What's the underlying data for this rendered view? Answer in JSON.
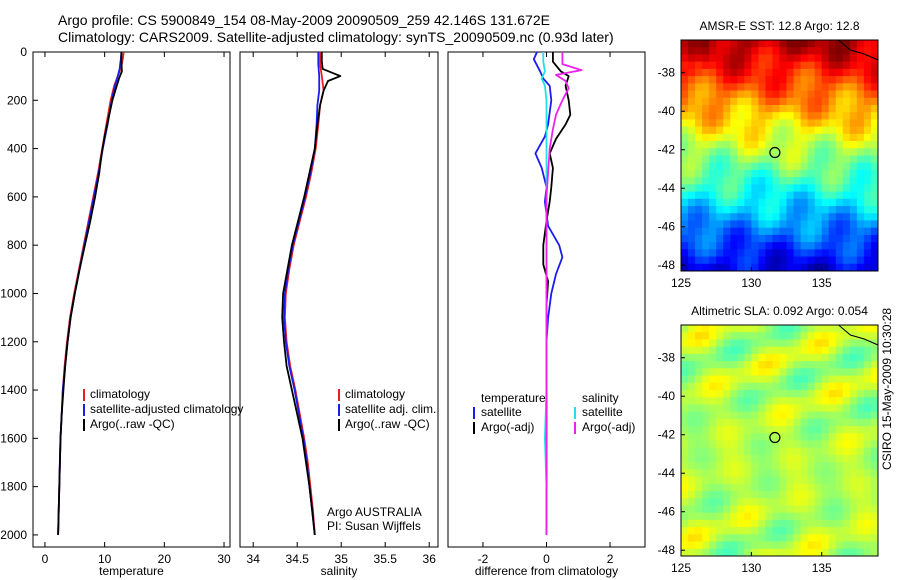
{
  "header": {
    "line1": "Argo profile: CS 5900849_154 08-May-2009 20090509_259 42.146S 131.672E",
    "line2": "Climatology: CARS2009. Satellite-adjusted climatology: synTS_20090509.nc (0.93d later)"
  },
  "side_stamp": "CSIRO 15-May-2009 10:30:28",
  "colors": {
    "red": "#ee1c1c",
    "blue": "#1c1cee",
    "black": "#000000",
    "cyan": "#22e0e8",
    "magenta": "#ee22ee"
  },
  "chart_data": [
    {
      "type": "line",
      "id": "temperature",
      "xlabel": "temperature",
      "xlim": [
        -2,
        31
      ],
      "ylim": [
        2050,
        0
      ],
      "xticks": [
        0,
        10,
        20,
        30
      ],
      "yticks": [
        0,
        200,
        400,
        600,
        800,
        1000,
        1200,
        1400,
        1600,
        1800,
        2000
      ],
      "legend": [
        "climatology",
        "satellite-adjusted climatology",
        "Argo(..raw -QC)"
      ],
      "series": [
        {
          "name": "climatology",
          "color": "red",
          "points": [
            [
              13.2,
              0
            ],
            [
              13.1,
              20
            ],
            [
              12.8,
              60
            ],
            [
              12.2,
              100
            ],
            [
              11.6,
              140
            ],
            [
              11.0,
              200
            ],
            [
              10.3,
              300
            ],
            [
              9.6,
              400
            ],
            [
              8.9,
              500
            ],
            [
              8.1,
              600
            ],
            [
              7.3,
              700
            ],
            [
              6.5,
              800
            ],
            [
              5.7,
              900
            ],
            [
              4.9,
              1000
            ],
            [
              4.2,
              1100
            ],
            [
              3.7,
              1200
            ],
            [
              3.3,
              1300
            ],
            [
              3.0,
              1400
            ],
            [
              2.8,
              1500
            ],
            [
              2.6,
              1600
            ],
            [
              2.5,
              1700
            ],
            [
              2.4,
              1800
            ],
            [
              2.3,
              1900
            ],
            [
              2.2,
              2000
            ]
          ]
        },
        {
          "name": "satellite-adjusted climatology",
          "color": "blue",
          "points": [
            [
              12.8,
              0
            ],
            [
              12.7,
              30
            ],
            [
              12.5,
              70
            ],
            [
              12.2,
              100
            ],
            [
              11.7,
              140
            ],
            [
              11.2,
              200
            ],
            [
              10.5,
              300
            ],
            [
              9.7,
              400
            ],
            [
              9.0,
              500
            ],
            [
              8.2,
              600
            ],
            [
              7.4,
              700
            ],
            [
              6.6,
              800
            ],
            [
              5.8,
              900
            ],
            [
              5.0,
              1000
            ],
            [
              4.3,
              1100
            ],
            [
              3.8,
              1200
            ],
            [
              3.4,
              1300
            ],
            [
              3.0,
              1400
            ],
            [
              2.8,
              1500
            ],
            [
              2.6,
              1600
            ],
            [
              2.5,
              1700
            ],
            [
              2.4,
              1800
            ],
            [
              2.3,
              1900
            ],
            [
              2.2,
              2000
            ]
          ]
        },
        {
          "name": "Argo(..raw -QC)",
          "color": "black",
          "points": [
            [
              12.8,
              0
            ],
            [
              12.8,
              40
            ],
            [
              12.9,
              80
            ],
            [
              12.4,
              110
            ],
            [
              11.9,
              150
            ],
            [
              11.3,
              200
            ],
            [
              10.6,
              280
            ],
            [
              10.0,
              350
            ],
            [
              9.5,
              420
            ],
            [
              9.1,
              500
            ],
            [
              8.4,
              600
            ],
            [
              7.6,
              700
            ],
            [
              6.7,
              800
            ],
            [
              5.8,
              900
            ],
            [
              5.0,
              1000
            ],
            [
              4.3,
              1100
            ],
            [
              3.8,
              1200
            ],
            [
              3.4,
              1300
            ],
            [
              3.1,
              1400
            ],
            [
              2.8,
              1500
            ],
            [
              2.6,
              1600
            ],
            [
              2.5,
              1700
            ],
            [
              2.4,
              1800
            ],
            [
              2.3,
              1900
            ],
            [
              2.2,
              2000
            ]
          ]
        }
      ]
    },
    {
      "type": "line",
      "id": "salinity",
      "xlabel": "salinity",
      "xlim": [
        33.85,
        36.1
      ],
      "ylim": [
        2050,
        0
      ],
      "xticks": [
        34,
        34.5,
        35,
        35.5,
        36
      ],
      "yticks": [],
      "legend": [
        "climatology",
        "satellite adj. clim.",
        "Argo(..raw -QC)"
      ],
      "annotation": [
        "Argo AUSTRALIA",
        "PI: Susan Wijffels"
      ],
      "series": [
        {
          "name": "climatology",
          "color": "red",
          "points": [
            [
              34.76,
              0
            ],
            [
              34.76,
              50
            ],
            [
              34.78,
              100
            ],
            [
              34.8,
              160
            ],
            [
              34.76,
              220
            ],
            [
              34.74,
              300
            ],
            [
              34.71,
              400
            ],
            [
              34.66,
              500
            ],
            [
              34.6,
              600
            ],
            [
              34.53,
              700
            ],
            [
              34.46,
              800
            ],
            [
              34.41,
              900
            ],
            [
              34.37,
              1000
            ],
            [
              34.36,
              1100
            ],
            [
              34.38,
              1200
            ],
            [
              34.42,
              1300
            ],
            [
              34.48,
              1400
            ],
            [
              34.53,
              1500
            ],
            [
              34.58,
              1600
            ],
            [
              34.62,
              1700
            ],
            [
              34.65,
              1800
            ],
            [
              34.68,
              1900
            ],
            [
              34.7,
              2000
            ]
          ]
        },
        {
          "name": "satellite adj. clim.",
          "color": "blue",
          "points": [
            [
              34.74,
              0
            ],
            [
              34.74,
              50
            ],
            [
              34.75,
              100
            ],
            [
              34.75,
              160
            ],
            [
              34.73,
              220
            ],
            [
              34.72,
              300
            ],
            [
              34.7,
              400
            ],
            [
              34.65,
              500
            ],
            [
              34.59,
              600
            ],
            [
              34.52,
              700
            ],
            [
              34.45,
              800
            ],
            [
              34.4,
              900
            ],
            [
              34.36,
              1000
            ],
            [
              34.35,
              1100
            ],
            [
              34.37,
              1200
            ],
            [
              34.41,
              1300
            ],
            [
              34.47,
              1400
            ],
            [
              34.52,
              1500
            ],
            [
              34.57,
              1600
            ],
            [
              34.61,
              1700
            ],
            [
              34.64,
              1800
            ],
            [
              34.67,
              1900
            ],
            [
              34.7,
              2000
            ]
          ]
        },
        {
          "name": "Argo(..raw -QC)",
          "color": "black",
          "points": [
            [
              34.78,
              0
            ],
            [
              34.78,
              40
            ],
            [
              34.79,
              70
            ],
            [
              34.99,
              100
            ],
            [
              34.85,
              120
            ],
            [
              34.8,
              160
            ],
            [
              34.76,
              220
            ],
            [
              34.73,
              300
            ],
            [
              34.7,
              400
            ],
            [
              34.64,
              500
            ],
            [
              34.58,
              600
            ],
            [
              34.51,
              700
            ],
            [
              34.44,
              800
            ],
            [
              34.39,
              900
            ],
            [
              34.34,
              1000
            ],
            [
              34.33,
              1100
            ],
            [
              34.35,
              1200
            ],
            [
              34.38,
              1300
            ],
            [
              34.44,
              1400
            ],
            [
              34.5,
              1500
            ],
            [
              34.56,
              1600
            ],
            [
              34.6,
              1700
            ],
            [
              34.64,
              1800
            ],
            [
              34.67,
              1900
            ],
            [
              34.7,
              2000
            ]
          ]
        }
      ]
    },
    {
      "type": "line",
      "id": "difference",
      "xlabel": "difference from climatology",
      "xlim": [
        -3.1,
        3.1
      ],
      "ylim": [
        2050,
        0
      ],
      "xticks": [
        -2,
        0,
        2
      ],
      "yticks": [],
      "legend_left_title": "temperature",
      "legend_right_title": "salinity",
      "legend_left": [
        "satellite",
        "Argo(-adj)"
      ],
      "legend_right": [
        "satellite",
        "Argo(-adj)"
      ],
      "series": [
        {
          "name": "temperature satellite",
          "color": "blue",
          "points": [
            [
              -0.3,
              0
            ],
            [
              -0.4,
              30
            ],
            [
              -0.2,
              80
            ],
            [
              -0.1,
              110
            ],
            [
              0.1,
              140
            ],
            [
              0.15,
              200
            ],
            [
              0.05,
              300
            ],
            [
              -0.05,
              350
            ],
            [
              -0.35,
              420
            ],
            [
              -0.15,
              480
            ],
            [
              0.0,
              560
            ],
            [
              -0.05,
              620
            ],
            [
              0.05,
              720
            ],
            [
              0.4,
              800
            ],
            [
              0.5,
              850
            ],
            [
              0.3,
              920
            ],
            [
              0.15,
              1000
            ],
            [
              0.05,
              1100
            ],
            [
              0.0,
              1200
            ],
            [
              0.0,
              1400
            ],
            [
              0.0,
              1600
            ],
            [
              0.0,
              2000
            ]
          ]
        },
        {
          "name": "temperature Argo(-adj)",
          "color": "black",
          "points": [
            [
              0.2,
              0
            ],
            [
              0.2,
              40
            ],
            [
              0.45,
              80
            ],
            [
              0.7,
              100
            ],
            [
              0.6,
              140
            ],
            [
              0.7,
              200
            ],
            [
              0.75,
              260
            ],
            [
              0.6,
              300
            ],
            [
              0.3,
              360
            ],
            [
              0.1,
              420
            ],
            [
              0.2,
              480
            ],
            [
              0.15,
              560
            ],
            [
              0.1,
              620
            ],
            [
              0.0,
              700
            ],
            [
              -0.1,
              800
            ],
            [
              -0.1,
              880
            ],
            [
              0.05,
              950
            ],
            [
              0.0,
              1050
            ],
            [
              0.0,
              1200
            ],
            [
              0.0,
              1400
            ],
            [
              0.0,
              1600
            ],
            [
              0.0,
              2000
            ]
          ]
        },
        {
          "name": "salinity satellite",
          "color": "cyan",
          "points": [
            [
              -0.1,
              0
            ],
            [
              -0.1,
              40
            ],
            [
              -0.05,
              80
            ],
            [
              -0.15,
              110
            ],
            [
              -0.05,
              140
            ],
            [
              0.0,
              200
            ],
            [
              0.0,
              400
            ],
            [
              0.0,
              600
            ],
            [
              0.0,
              800
            ],
            [
              0.0,
              1000
            ],
            [
              0.0,
              1200
            ],
            [
              0.0,
              1400
            ],
            [
              -0.05,
              1600
            ],
            [
              0.0,
              1800
            ],
            [
              0.0,
              2000
            ]
          ]
        },
        {
          "name": "salinity Argo(-adj)",
          "color": "magenta",
          "points": [
            [
              0.5,
              0
            ],
            [
              0.5,
              50
            ],
            [
              1.1,
              75
            ],
            [
              0.3,
              95
            ],
            [
              0.6,
              120
            ],
            [
              0.7,
              150
            ],
            [
              0.5,
              200
            ],
            [
              0.3,
              260
            ],
            [
              0.2,
              320
            ],
            [
              0.1,
              400
            ],
            [
              0.05,
              500
            ],
            [
              0.0,
              600
            ],
            [
              0.0,
              800
            ],
            [
              0.0,
              1000
            ],
            [
              0.0,
              1200
            ],
            [
              0.0,
              1400
            ],
            [
              0.0,
              1600
            ],
            [
              0.0,
              1800
            ],
            [
              0.0,
              2000
            ]
          ]
        }
      ]
    },
    {
      "type": "heatmap",
      "id": "sst",
      "title": "AMSR-E SST: 12.8  Argo: 12.8",
      "xlim": [
        125,
        139
      ],
      "ylim": [
        -48.3,
        -36.3
      ],
      "xticks": [
        125,
        130,
        135
      ],
      "yticks": [
        -38,
        -40,
        -42,
        -44,
        -46,
        -48
      ],
      "argo_position": [
        131.672,
        -42.146
      ],
      "colormap": "jet",
      "field": "warm north, cold south"
    },
    {
      "type": "heatmap",
      "id": "sla",
      "title": "Altimetric SLA: 0.092  Argo: 0.054",
      "xlim": [
        125,
        139
      ],
      "ylim": [
        -48.3,
        -36.3
      ],
      "xticks": [
        125,
        130,
        135
      ],
      "yticks": [
        -38,
        -40,
        -42,
        -44,
        -46,
        -48
      ],
      "argo_position": [
        131.672,
        -42.146
      ],
      "colormap": "jet",
      "field": "near-zero anomaly"
    }
  ]
}
